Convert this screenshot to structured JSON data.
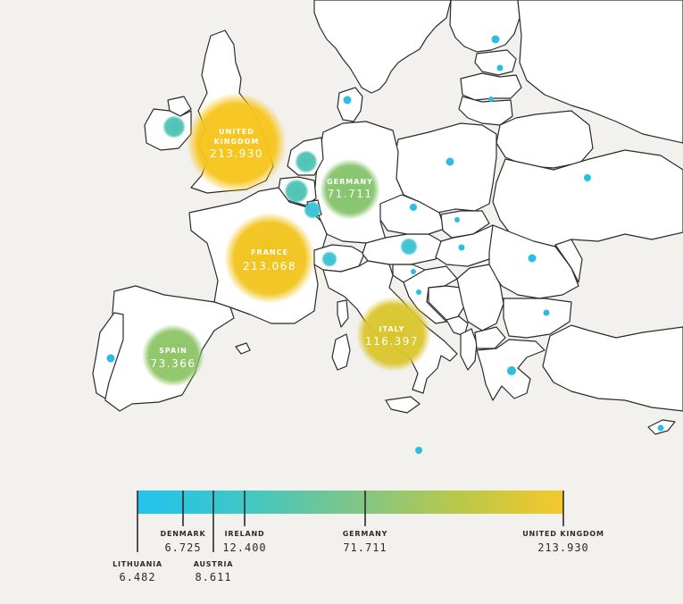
{
  "map": {
    "bubbles": [
      {
        "id": "united-kingdom",
        "name_lines": [
          "UNITED",
          "KINGDOM"
        ],
        "value": "213.930",
        "color": "#f5c61e"
      },
      {
        "id": "france",
        "name_lines": [
          "FRANCE"
        ],
        "value": "213.068",
        "color": "#f2c41e"
      },
      {
        "id": "italy",
        "name_lines": [
          "ITALY"
        ],
        "value": "116.397",
        "color": "#dac82f"
      },
      {
        "id": "spain",
        "name_lines": [
          "SPAIN"
        ],
        "value": "73.366",
        "color": "#8cc66a"
      },
      {
        "id": "germany",
        "name_lines": [
          "GERMANY"
        ],
        "value": "71.711",
        "color": "#88c56c"
      }
    ],
    "dot_color": "#2cbde4",
    "land_color": "#ffffff",
    "sea_color": "#f2f1ee"
  },
  "legend": {
    "gradient": [
      "#21c3ef",
      "#3fc7c4",
      "#7cc68a",
      "#b8c84a",
      "#f5c82a"
    ],
    "min": 6.482,
    "max": 213.93,
    "markers": [
      {
        "name": "LITHUANIA",
        "value": "6.482",
        "numeric": 6.482,
        "label_side": "below"
      },
      {
        "name": "DENMARK",
        "value": "6.725",
        "numeric": 6.725,
        "label_side": "above"
      },
      {
        "name": "AUSTRIA",
        "value": "8.611",
        "numeric": 8.611,
        "label_side": "below"
      },
      {
        "name": "IRELAND",
        "value": "12.400",
        "numeric": 12.4,
        "label_side": "above"
      },
      {
        "name": "GERMANY",
        "value": "71.711",
        "numeric": 71.711,
        "label_side": "above"
      },
      {
        "name": "UNITED KINGDOM",
        "value": "213.930",
        "numeric": 213.93,
        "label_side": "above"
      }
    ]
  }
}
